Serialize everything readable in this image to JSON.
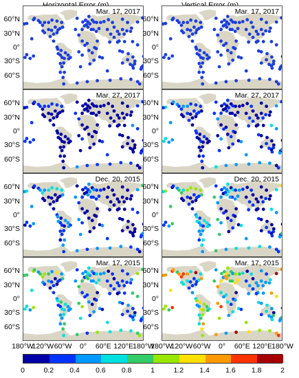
{
  "columns": [
    {
      "title": "Horizontal Error (m)",
      "key": "horizontal"
    },
    {
      "title": "Vertical Error (m)",
      "key": "vertical"
    }
  ],
  "rows": [
    {
      "date": "Mar. 17, 2017",
      "level": 0
    },
    {
      "date": "Mar. 27, 2017",
      "level": 1
    },
    {
      "date": "Dec. 20, 2015",
      "level": 2
    },
    {
      "date": "Mar. 17, 2015",
      "level": 3
    }
  ],
  "lat_ticks": [
    "60°N",
    "30°N",
    "0°",
    "30°S",
    "60°S"
  ],
  "lon_ticks": [
    "180°W",
    "120°W",
    "60°W",
    "0°",
    "60°E",
    "120°E",
    "180°W"
  ],
  "colorbar": {
    "min": 0,
    "max": 2,
    "ticks": [
      "0",
      "0.2",
      "0.4",
      "0.6",
      "0.8",
      "1",
      "1.2",
      "1.4",
      "1.6",
      "1.8",
      "2"
    ],
    "colors": [
      "#0000a6",
      "#0033ff",
      "#0099ff",
      "#00e0e0",
      "#33cc66",
      "#99e600",
      "#ffe000",
      "#ff9900",
      "#ff3300",
      "#a60000"
    ]
  },
  "land_color": "#dad6c6",
  "station_color": "#1a3ee0"
}
